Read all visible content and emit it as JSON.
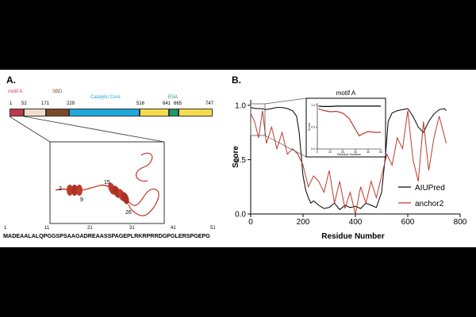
{
  "panel_a": {
    "label": "A.",
    "domains": [
      {
        "name": "motif A",
        "color": "#c0394b"
      },
      {
        "name": "SBD",
        "color": "#7b4a2a"
      },
      {
        "name": "Catalytic Core",
        "color": "#1ea8dc"
      },
      {
        "name": "ESA",
        "color": "#1a9a6a"
      }
    ],
    "segment_colors": {
      "motifA": "#c0394b",
      "linker": "#f0dcc8",
      "sbd": "#7b4a2a",
      "core": "#1ea8dc",
      "yellow": "#f5dc4f",
      "esa": "#1a9a6a"
    },
    "positions": [
      "1",
      "52",
      "171",
      "229",
      "516",
      "641",
      "665",
      "747"
    ],
    "structure": {
      "residue_labels": [
        "2",
        "9",
        "15",
        "26"
      ],
      "helix_color": "#c0392b"
    },
    "sequence_numbers": [
      "1",
      "11",
      "21",
      "31",
      "41",
      "51"
    ],
    "sequence": "MADEAALALQPGGSPSAAGADREAASSPAGEPLRKRPRRDGPGLERSPGEPG"
  },
  "panel_b": {
    "label": "B.",
    "inset_title": "motif A",
    "inset_xlabel": "Residue Number",
    "inset_ylabel": "Score"
  },
  "chart_data": {
    "type": "line",
    "title": "",
    "xlabel": "Residue Number",
    "ylabel": "Score",
    "xlim": [
      0,
      800
    ],
    "ylim": [
      0,
      1.05
    ],
    "xticks": [
      "0",
      "200",
      "400",
      "600",
      "800"
    ],
    "yticks": [
      "0.0",
      "0.5",
      "1.0"
    ],
    "legend": "right",
    "series": [
      {
        "name": "AIUPred",
        "color": "#000000",
        "x": [
          1,
          20,
          40,
          60,
          80,
          100,
          120,
          140,
          160,
          175,
          185,
          200,
          210,
          220,
          230,
          240,
          260,
          280,
          300,
          320,
          340,
          360,
          380,
          400,
          420,
          440,
          460,
          480,
          500,
          515,
          525,
          540,
          560,
          580,
          600,
          620,
          640,
          660,
          680,
          700,
          720,
          740,
          747
        ],
        "y": [
          0.98,
          0.97,
          0.97,
          0.96,
          0.97,
          0.98,
          0.98,
          0.97,
          0.95,
          0.9,
          0.75,
          0.35,
          0.22,
          0.15,
          0.1,
          0.12,
          0.08,
          0.05,
          0.06,
          0.1,
          0.04,
          0.08,
          0.06,
          0.07,
          0.05,
          0.1,
          0.08,
          0.06,
          0.2,
          0.55,
          0.85,
          0.93,
          0.95,
          0.96,
          0.97,
          0.9,
          0.8,
          0.75,
          0.85,
          0.92,
          0.96,
          0.97,
          0.95
        ]
      },
      {
        "name": "anchor2",
        "color": "#c0392b",
        "x": [
          1,
          15,
          30,
          45,
          60,
          80,
          100,
          120,
          140,
          160,
          180,
          200,
          220,
          240,
          260,
          280,
          300,
          320,
          340,
          360,
          380,
          400,
          420,
          440,
          460,
          480,
          500,
          520,
          540,
          560,
          580,
          600,
          620,
          640,
          660,
          680,
          700,
          720,
          747
        ],
        "y": [
          0.92,
          0.85,
          0.7,
          0.95,
          0.65,
          0.8,
          0.6,
          0.75,
          0.55,
          0.6,
          0.55,
          0.45,
          0.25,
          0.35,
          0.3,
          0.2,
          0.4,
          0.1,
          0.3,
          0.05,
          0.2,
          0.0,
          0.25,
          0.1,
          0.3,
          0.15,
          0.35,
          0.55,
          0.45,
          0.7,
          0.6,
          0.95,
          0.5,
          0.3,
          0.85,
          0.4,
          0.7,
          0.9,
          0.65
        ]
      }
    ],
    "inset": {
      "xlim": [
        0,
        50
      ],
      "ylim": [
        0,
        1.05
      ],
      "xticks": [
        "0",
        "10",
        "20",
        "30",
        "40",
        "50"
      ],
      "yticks": [
        "0.0",
        "0.5",
        "1.0"
      ],
      "series": [
        {
          "name": "AIUPred",
          "color": "#000000",
          "x": [
            1,
            5,
            10,
            15,
            20,
            25,
            30,
            35,
            40,
            45,
            50
          ],
          "y": [
            0.98,
            0.97,
            0.97,
            0.98,
            0.98,
            0.98,
            0.98,
            0.98,
            0.98,
            0.98,
            0.98
          ]
        },
        {
          "name": "anchor2",
          "color": "#c0392b",
          "x": [
            1,
            5,
            10,
            15,
            20,
            25,
            30,
            33,
            36,
            40,
            45,
            50
          ],
          "y": [
            0.92,
            0.88,
            0.85,
            0.86,
            0.82,
            0.7,
            0.45,
            0.3,
            0.35,
            0.4,
            0.38,
            0.38
          ]
        }
      ]
    }
  }
}
